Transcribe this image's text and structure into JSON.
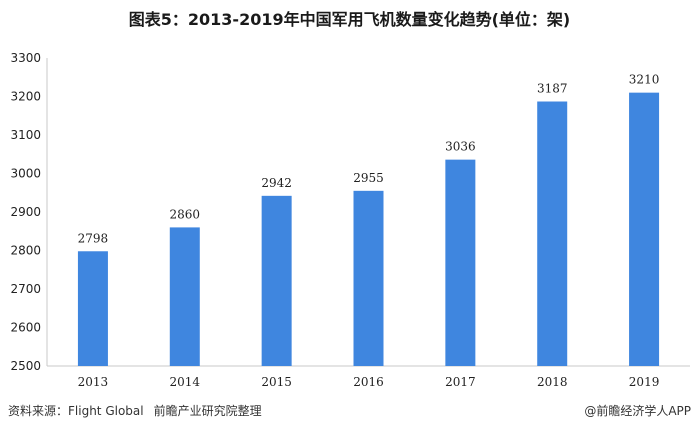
{
  "title": "图表5：2013-2019年中国军用飞机数量变化趋势(单位：架)",
  "colors": {
    "bar": "#3F86DF",
    "axis": "#C8C8C8",
    "text": "#222222"
  },
  "chart_data": {
    "type": "bar",
    "categories": [
      "2013",
      "2014",
      "2015",
      "2016",
      "2017",
      "2018",
      "2019"
    ],
    "values": [
      2798,
      2860,
      2942,
      2955,
      3036,
      3187,
      3210
    ],
    "ylim": [
      2500,
      3300
    ],
    "yticks": [
      2500,
      2600,
      2700,
      2800,
      2900,
      3000,
      3100,
      3200,
      3300
    ],
    "data_labels": true,
    "grid": false,
    "legend": "none"
  },
  "footer": {
    "source_label": "资料来源：",
    "source_org": "Flight Global",
    "source_compiler": "前瞻产业研究院整理",
    "brand": "@前瞻经济学人APP"
  }
}
